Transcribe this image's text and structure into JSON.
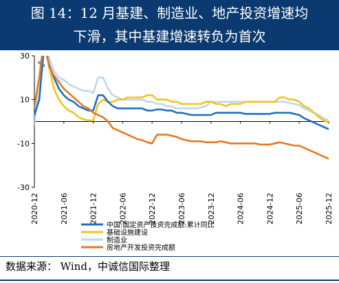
{
  "title": {
    "line1": "图 14：12 月基建、制造业、地产投资增速均",
    "line2": "下滑，其中基建增速转负为首次"
  },
  "source": "数据来源： Wind，中诚信国际整理",
  "chart_data": {
    "type": "line",
    "unit_label": "%",
    "ylim": [
      -30,
      30
    ],
    "yticks": [
      30,
      10,
      -10,
      -30
    ],
    "x_range": [
      "2020-12",
      "2025-12"
    ],
    "xticks": [
      "2020-12",
      "2021-06",
      "2021-12",
      "2022-06",
      "2022-12",
      "2023-06",
      "2023-12",
      "2024-06",
      "2024-12",
      "2025-06",
      "2025-12"
    ],
    "grid": false,
    "legend_position": "bottom-left",
    "series": [
      {
        "name": "中国:固定资产投资完成额:累计同比",
        "color": "#1f6fbf",
        "points": [
          [
            "2020-12",
            3
          ],
          [
            "2021-01",
            10
          ],
          [
            "2021-02",
            35
          ],
          [
            "2021-03",
            26
          ],
          [
            "2021-04",
            20
          ],
          [
            "2021-05",
            15
          ],
          [
            "2021-06",
            12
          ],
          [
            "2021-07",
            10
          ],
          [
            "2021-08",
            9
          ],
          [
            "2021-09",
            7
          ],
          [
            "2021-10",
            6
          ],
          [
            "2021-11",
            5
          ],
          [
            "2021-12",
            5
          ],
          [
            "2022-01",
            12
          ],
          [
            "2022-02",
            12
          ],
          [
            "2022-03",
            9
          ],
          [
            "2022-04",
            7
          ],
          [
            "2022-05",
            6
          ],
          [
            "2022-06",
            6
          ],
          [
            "2022-07",
            6
          ],
          [
            "2022-08",
            6
          ],
          [
            "2022-09",
            6
          ],
          [
            "2022-10",
            6
          ],
          [
            "2022-11",
            5
          ],
          [
            "2022-12",
            5
          ],
          [
            "2023-01",
            5.5
          ],
          [
            "2023-02",
            5.5
          ],
          [
            "2023-03",
            5
          ],
          [
            "2023-04",
            5
          ],
          [
            "2023-05",
            4
          ],
          [
            "2023-06",
            4
          ],
          [
            "2023-07",
            3.5
          ],
          [
            "2023-08",
            3
          ],
          [
            "2023-09",
            3
          ],
          [
            "2023-10",
            3
          ],
          [
            "2023-11",
            3
          ],
          [
            "2023-12",
            3
          ],
          [
            "2024-01",
            4
          ],
          [
            "2024-02",
            4
          ],
          [
            "2024-03",
            4
          ],
          [
            "2024-04",
            4
          ],
          [
            "2024-05",
            4
          ],
          [
            "2024-06",
            4
          ],
          [
            "2024-07",
            3.5
          ],
          [
            "2024-08",
            3.5
          ],
          [
            "2024-09",
            3.5
          ],
          [
            "2024-10",
            3.5
          ],
          [
            "2024-11",
            3.5
          ],
          [
            "2024-12",
            3.5
          ],
          [
            "2025-01",
            4
          ],
          [
            "2025-02",
            4
          ],
          [
            "2025-03",
            4
          ],
          [
            "2025-04",
            4
          ],
          [
            "2025-05",
            3.5
          ],
          [
            "2025-06",
            3
          ],
          [
            "2025-07",
            1.5
          ],
          [
            "2025-08",
            0.5
          ],
          [
            "2025-09",
            -0.5
          ],
          [
            "2025-10",
            -1.5
          ],
          [
            "2025-11",
            -2.5
          ],
          [
            "2025-12",
            -3.5
          ]
        ]
      },
      {
        "name": "基础设施建设",
        "color": "#f4c21b",
        "points": [
          [
            "2020-12",
            3
          ],
          [
            "2021-01",
            10
          ],
          [
            "2021-02",
            37
          ],
          [
            "2021-03",
            25
          ],
          [
            "2021-04",
            15
          ],
          [
            "2021-05",
            10
          ],
          [
            "2021-06",
            7
          ],
          [
            "2021-07",
            5
          ],
          [
            "2021-08",
            4
          ],
          [
            "2021-09",
            2
          ],
          [
            "2021-10",
            1
          ],
          [
            "2021-11",
            0.5
          ],
          [
            "2021-12",
            0.5
          ],
          [
            "2022-01",
            8
          ],
          [
            "2022-02",
            10
          ],
          [
            "2022-03",
            9
          ],
          [
            "2022-04",
            9
          ],
          [
            "2022-05",
            10
          ],
          [
            "2022-06",
            10
          ],
          [
            "2022-07",
            11
          ],
          [
            "2022-08",
            11
          ],
          [
            "2022-09",
            11
          ],
          [
            "2022-10",
            11
          ],
          [
            "2022-11",
            12
          ],
          [
            "2022-12",
            12
          ],
          [
            "2023-01",
            10
          ],
          [
            "2023-02",
            10
          ],
          [
            "2023-03",
            10
          ],
          [
            "2023-04",
            9
          ],
          [
            "2023-05",
            9
          ],
          [
            "2023-06",
            8
          ],
          [
            "2023-07",
            8
          ],
          [
            "2023-08",
            8
          ],
          [
            "2023-09",
            8
          ],
          [
            "2023-10",
            8
          ],
          [
            "2023-11",
            9
          ],
          [
            "2023-12",
            9
          ],
          [
            "2024-01",
            8
          ],
          [
            "2024-02",
            8
          ],
          [
            "2024-03",
            7
          ],
          [
            "2024-04",
            8
          ],
          [
            "2024-05",
            8
          ],
          [
            "2024-06",
            8
          ],
          [
            "2024-07",
            9
          ],
          [
            "2024-08",
            9
          ],
          [
            "2024-09",
            9
          ],
          [
            "2024-10",
            9
          ],
          [
            "2024-11",
            9
          ],
          [
            "2024-12",
            9
          ],
          [
            "2025-01",
            9
          ],
          [
            "2025-02",
            11
          ],
          [
            "2025-03",
            11
          ],
          [
            "2025-04",
            10
          ],
          [
            "2025-05",
            10
          ],
          [
            "2025-06",
            9
          ],
          [
            "2025-07",
            7
          ],
          [
            "2025-08",
            6
          ],
          [
            "2025-09",
            4
          ],
          [
            "2025-10",
            2
          ],
          [
            "2025-11",
            0.5
          ],
          [
            "2025-12",
            -0.5
          ]
        ]
      },
      {
        "name": "制造业",
        "color": "#bdd7ee",
        "points": [
          [
            "2020-12",
            -2
          ],
          [
            "2021-01",
            20
          ],
          [
            "2021-02",
            38
          ],
          [
            "2021-03",
            29
          ],
          [
            "2021-04",
            23
          ],
          [
            "2021-05",
            20
          ],
          [
            "2021-06",
            19
          ],
          [
            "2021-07",
            17
          ],
          [
            "2021-08",
            16
          ],
          [
            "2021-09",
            15
          ],
          [
            "2021-10",
            14
          ],
          [
            "2021-11",
            14
          ],
          [
            "2021-12",
            13
          ],
          [
            "2022-01",
            20
          ],
          [
            "2022-02",
            20
          ],
          [
            "2022-03",
            15
          ],
          [
            "2022-04",
            12
          ],
          [
            "2022-05",
            11
          ],
          [
            "2022-06",
            10
          ],
          [
            "2022-07",
            10
          ],
          [
            "2022-08",
            10
          ],
          [
            "2022-09",
            10
          ],
          [
            "2022-10",
            10
          ],
          [
            "2022-11",
            9
          ],
          [
            "2022-12",
            9
          ],
          [
            "2023-01",
            8
          ],
          [
            "2023-02",
            8
          ],
          [
            "2023-03",
            7
          ],
          [
            "2023-04",
            7
          ],
          [
            "2023-05",
            6
          ],
          [
            "2023-06",
            6
          ],
          [
            "2023-07",
            6
          ],
          [
            "2023-08",
            6
          ],
          [
            "2023-09",
            6
          ],
          [
            "2023-10",
            6.5
          ],
          [
            "2023-11",
            7
          ],
          [
            "2023-12",
            9
          ],
          [
            "2024-01",
            9
          ],
          [
            "2024-02",
            9
          ],
          [
            "2024-03",
            9
          ],
          [
            "2024-04",
            9
          ],
          [
            "2024-05",
            9
          ],
          [
            "2024-06",
            9
          ],
          [
            "2024-07",
            9
          ],
          [
            "2024-08",
            9
          ],
          [
            "2024-09",
            9
          ],
          [
            "2024-10",
            9
          ],
          [
            "2024-11",
            9
          ],
          [
            "2024-12",
            9
          ],
          [
            "2025-01",
            9
          ],
          [
            "2025-02",
            9
          ],
          [
            "2025-03",
            9
          ],
          [
            "2025-04",
            8.5
          ],
          [
            "2025-05",
            8
          ],
          [
            "2025-06",
            7.5
          ],
          [
            "2025-07",
            6
          ],
          [
            "2025-08",
            5
          ],
          [
            "2025-09",
            4
          ],
          [
            "2025-10",
            3
          ],
          [
            "2025-11",
            1.5
          ],
          [
            "2025-12",
            0.5
          ]
        ]
      },
      {
        "name": "房地产开发投资完成额",
        "color": "#e8761f",
        "points": [
          [
            "2020-12",
            7
          ],
          [
            "2021-01",
            20
          ],
          [
            "2021-02",
            38
          ],
          [
            "2021-03",
            25
          ],
          [
            "2021-04",
            21
          ],
          [
            "2021-05",
            18
          ],
          [
            "2021-06",
            15
          ],
          [
            "2021-07",
            13
          ],
          [
            "2021-08",
            11
          ],
          [
            "2021-09",
            9
          ],
          [
            "2021-10",
            7
          ],
          [
            "2021-11",
            6
          ],
          [
            "2021-12",
            4
          ],
          [
            "2022-01",
            3
          ],
          [
            "2022-02",
            2
          ],
          [
            "2022-03",
            0
          ],
          [
            "2022-04",
            -3
          ],
          [
            "2022-05",
            -4
          ],
          [
            "2022-06",
            -5
          ],
          [
            "2022-07",
            -6
          ],
          [
            "2022-08",
            -7
          ],
          [
            "2022-09",
            -8
          ],
          [
            "2022-10",
            -8.5
          ],
          [
            "2022-11",
            -9.5
          ],
          [
            "2022-12",
            -10
          ],
          [
            "2023-01",
            -6
          ],
          [
            "2023-02",
            -6
          ],
          [
            "2023-03",
            -6
          ],
          [
            "2023-04",
            -6.5
          ],
          [
            "2023-05",
            -7
          ],
          [
            "2023-06",
            -8
          ],
          [
            "2023-07",
            -8.5
          ],
          [
            "2023-08",
            -9
          ],
          [
            "2023-09",
            -9
          ],
          [
            "2023-10",
            -9
          ],
          [
            "2023-11",
            -9.5
          ],
          [
            "2023-12",
            -9.5
          ],
          [
            "2024-01",
            -9.5
          ],
          [
            "2024-02",
            -9
          ],
          [
            "2024-03",
            -9.5
          ],
          [
            "2024-04",
            -10
          ],
          [
            "2024-05",
            -10
          ],
          [
            "2024-06",
            -10
          ],
          [
            "2024-07",
            -10
          ],
          [
            "2024-08",
            -10
          ],
          [
            "2024-09",
            -10
          ],
          [
            "2024-10",
            -10.5
          ],
          [
            "2024-11",
            -10.5
          ],
          [
            "2024-12",
            -10.5
          ],
          [
            "2025-01",
            -10
          ],
          [
            "2025-02",
            -9.5
          ],
          [
            "2025-03",
            -10
          ],
          [
            "2025-04",
            -10.5
          ],
          [
            "2025-05",
            -11
          ],
          [
            "2025-06",
            -11
          ],
          [
            "2025-07",
            -12
          ],
          [
            "2025-08",
            -13
          ],
          [
            "2025-09",
            -14
          ],
          [
            "2025-10",
            -15
          ],
          [
            "2025-11",
            -16
          ],
          [
            "2025-12",
            -17
          ]
        ]
      }
    ]
  }
}
